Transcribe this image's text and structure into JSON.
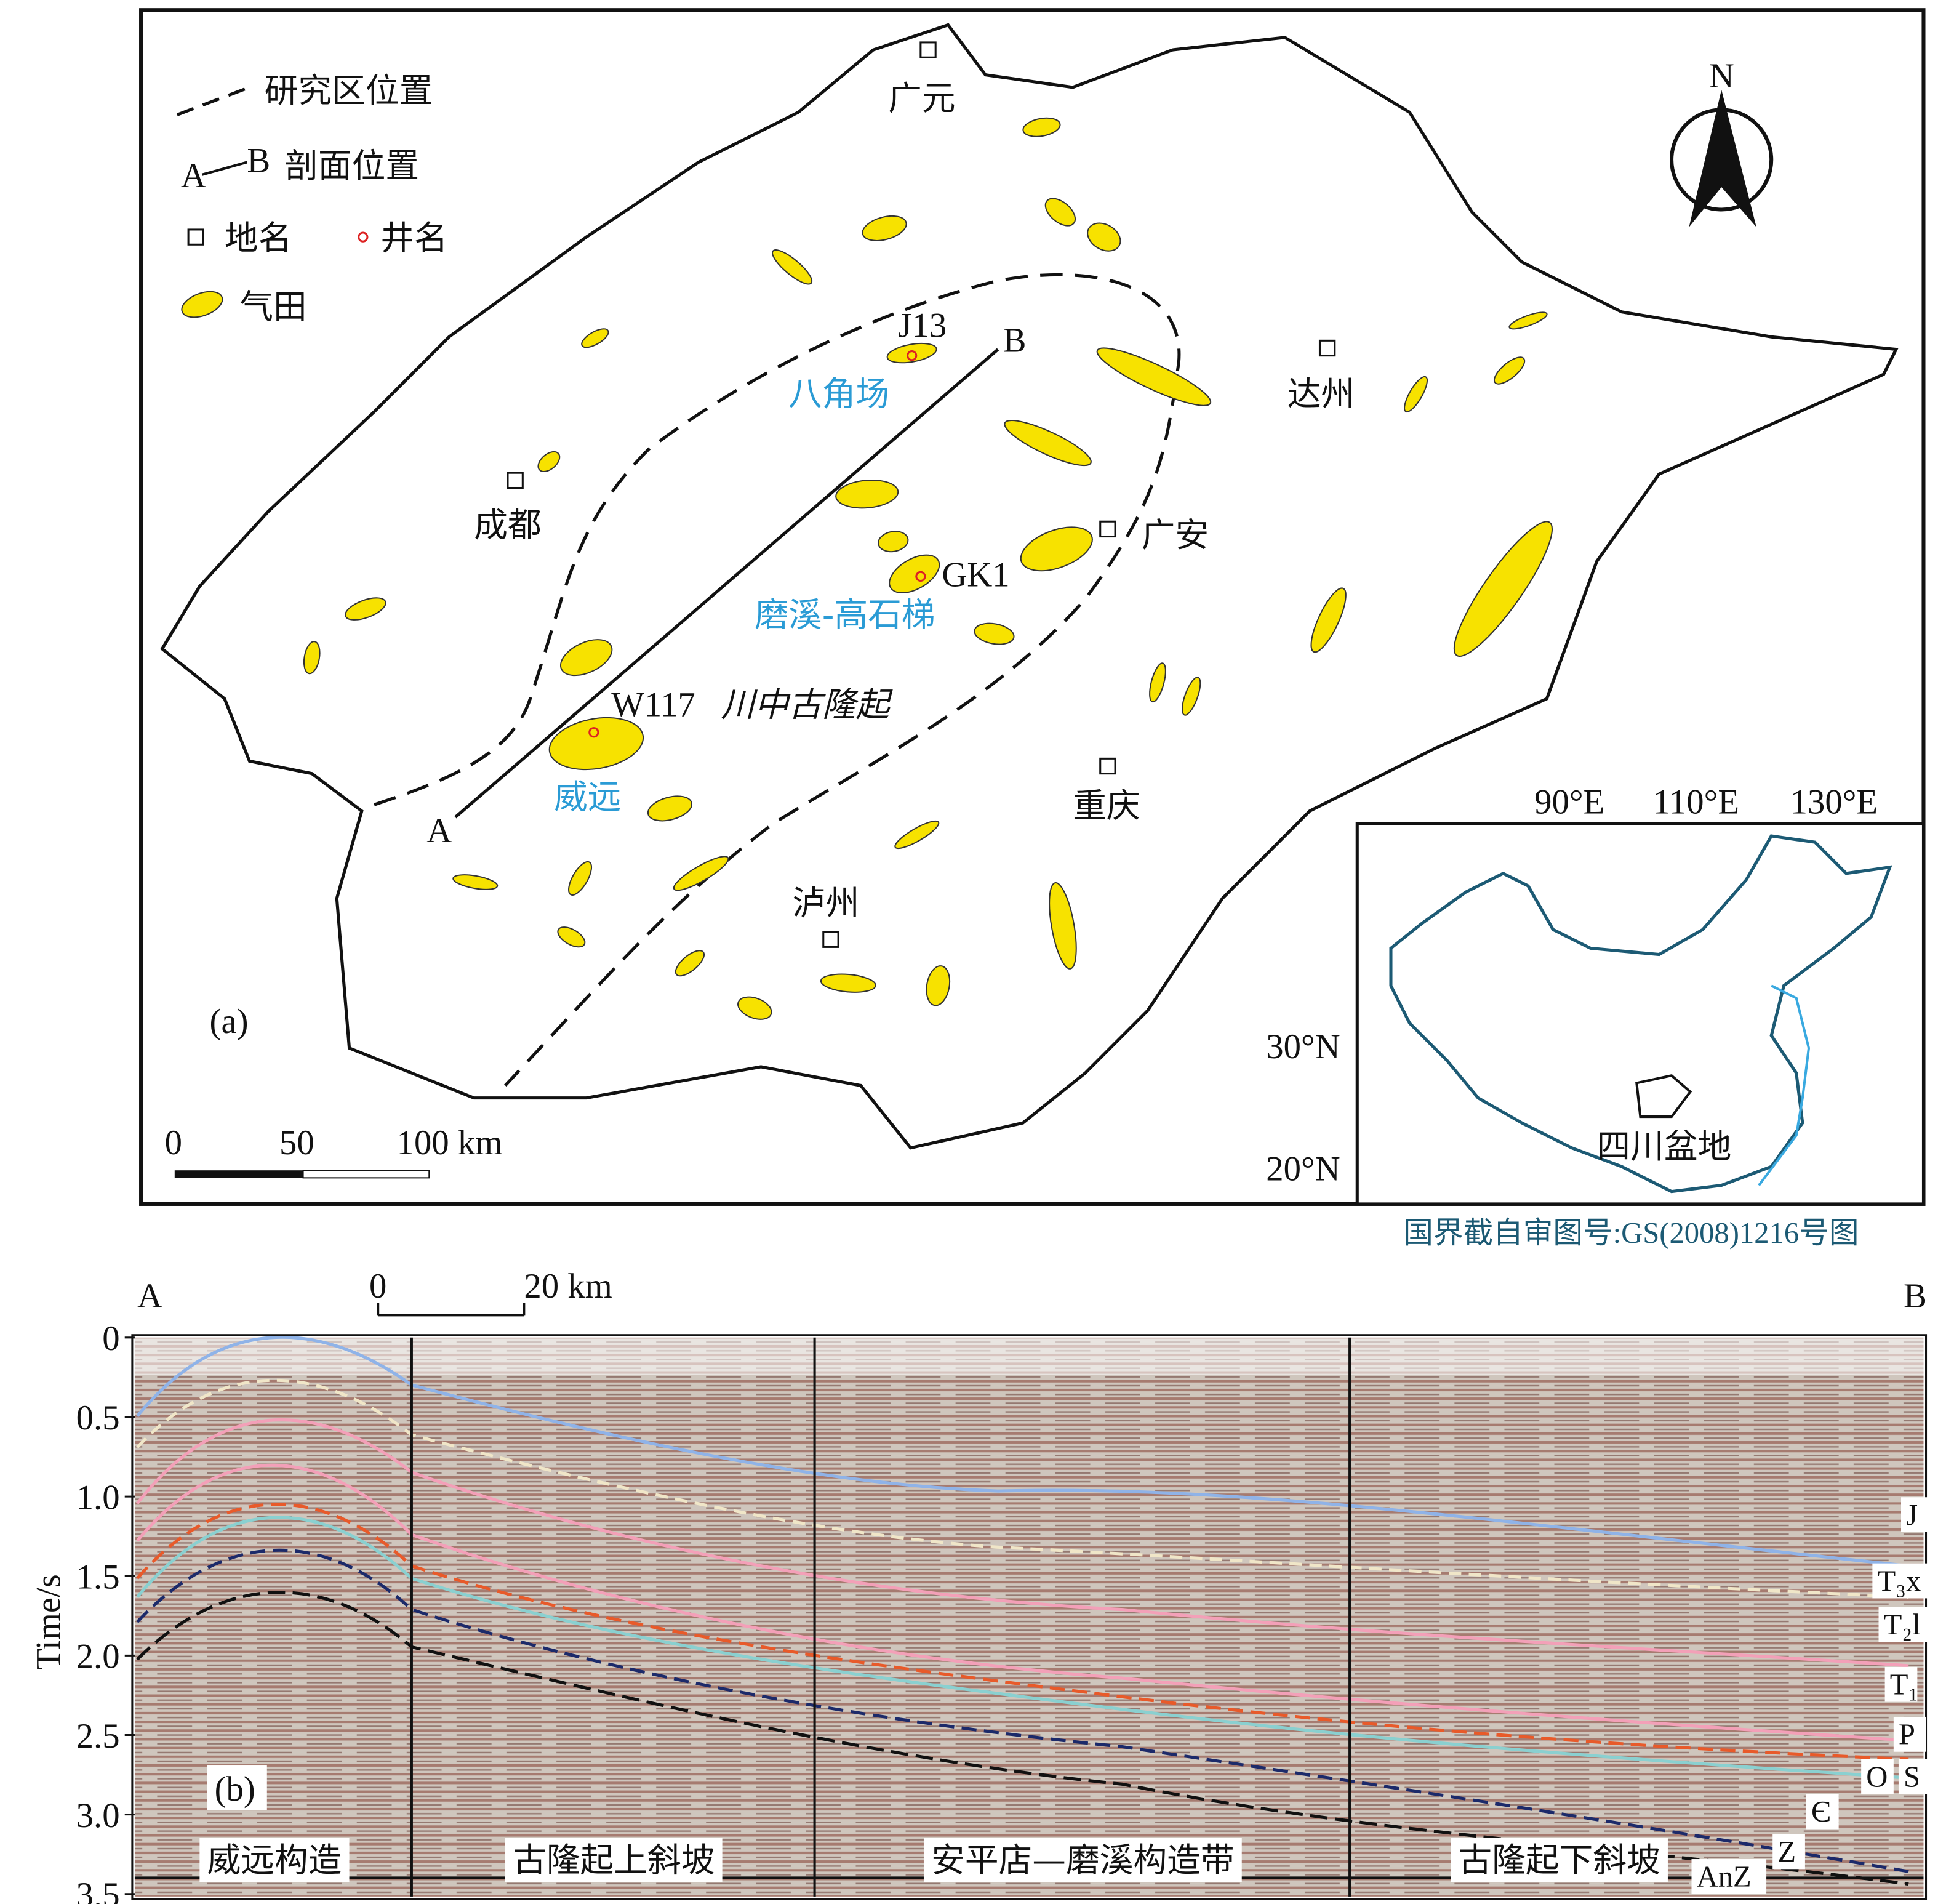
{
  "map": {
    "label": "(a)",
    "legend": {
      "study_area": "研究区位置",
      "section_a": "A",
      "section_b": "B",
      "section": "剖面位置",
      "place": "地名",
      "well": "井名",
      "gas_field": "气田"
    },
    "places": [
      "广元",
      "达州",
      "成都",
      "广安",
      "重庆",
      "泸州"
    ],
    "wells": [
      "J13",
      "GK1",
      "W117"
    ],
    "fields": [
      "八角场",
      "磨溪-高石梯",
      "威远"
    ],
    "structure": "川中古隆起",
    "section_ends": [
      "A",
      "B"
    ],
    "north": "N",
    "scale": [
      "0",
      "50",
      "100 km"
    ],
    "inset": {
      "lon": [
        "90°E",
        "110°E",
        "130°E"
      ],
      "lat": [
        "30°N",
        "20°N"
      ],
      "basin": "四川盆地",
      "caption": "国界截自审图号:GS(2008)1216号图"
    }
  },
  "section": {
    "label": "(b)",
    "ends": [
      "A",
      "B"
    ],
    "scale": [
      "0",
      "20 km"
    ],
    "y_title": "Time/s",
    "y_ticks": [
      "0",
      "0.5",
      "1.0",
      "1.5",
      "2.0",
      "2.5",
      "3.0",
      "3.5"
    ],
    "horizons": [
      "J",
      "T₃x",
      "T₂l",
      "T₁",
      "P",
      "O",
      "S",
      "Є",
      "Z",
      "AnZ"
    ],
    "zones": [
      "威远构造",
      "古隆起上斜坡",
      "安平店—磨溪构造带",
      "古隆起下斜坡"
    ]
  }
}
